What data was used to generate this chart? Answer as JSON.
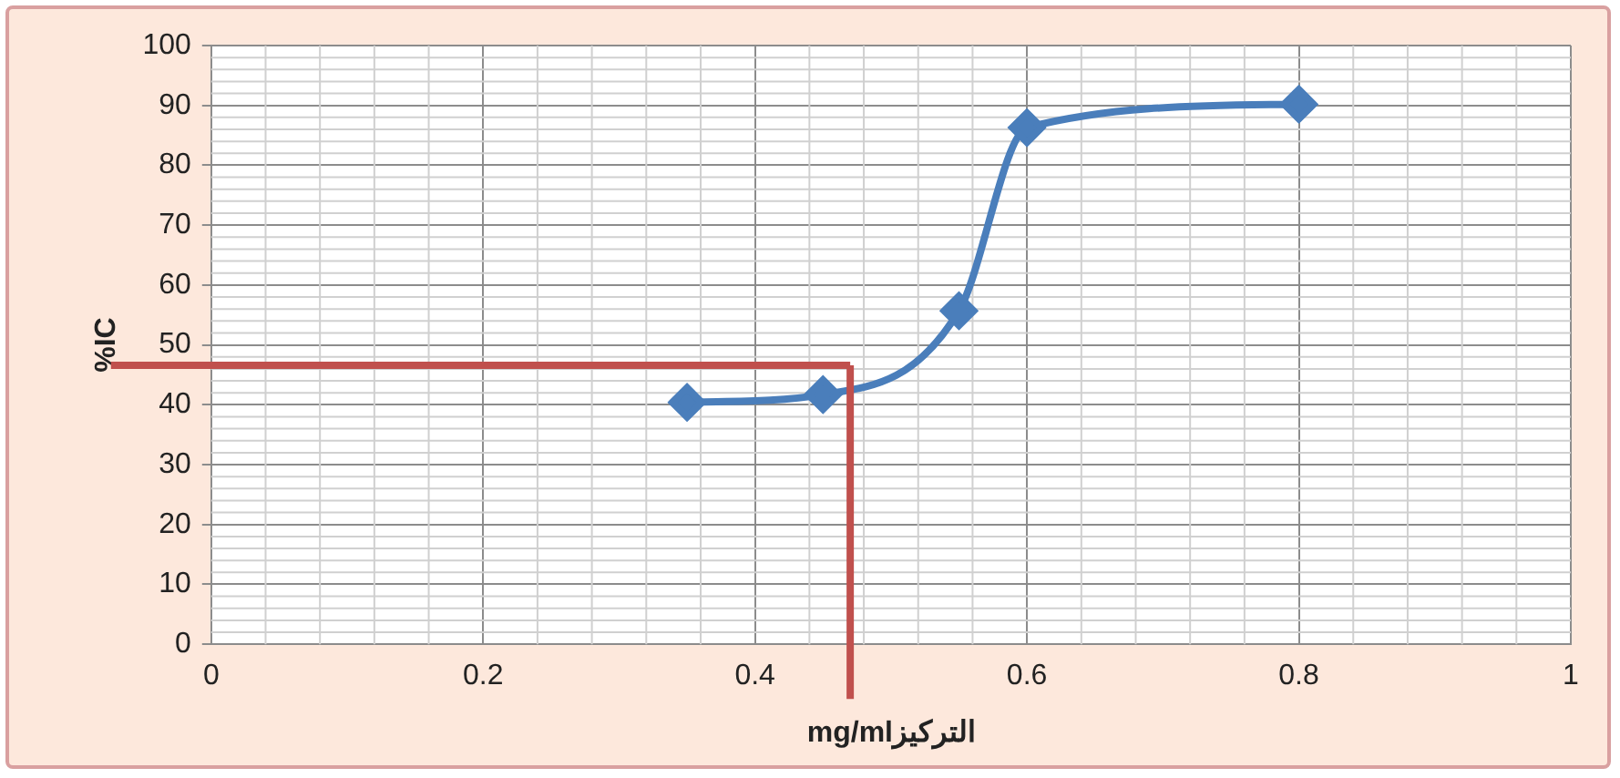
{
  "chart_data": {
    "type": "line",
    "xlabel": "mg/mlالتركيز",
    "ylabel": "%IC",
    "x": [
      0.35,
      0.45,
      0.55,
      0.6,
      0.8
    ],
    "series": [
      {
        "color": "#4a7ebb",
        "values": [
          40.4,
          41.7,
          55.7,
          86.3,
          90.2
        ]
      }
    ],
    "xlim": [
      0,
      1
    ],
    "xticks": [
      0,
      0.2,
      0.4,
      0.6,
      0.8,
      1
    ],
    "ylim": [
      0,
      100
    ],
    "yticks": [
      0,
      10,
      20,
      30,
      40,
      50,
      60,
      70,
      80,
      90,
      100
    ],
    "ref_lines": [
      {
        "axis": "y",
        "value": 46.6,
        "color": "#c0504d"
      },
      {
        "axis": "x",
        "value": 0.47,
        "color": "#c0504d"
      }
    ],
    "grid": true,
    "legend": false,
    "marker": "diamond",
    "line_style": "solid"
  }
}
